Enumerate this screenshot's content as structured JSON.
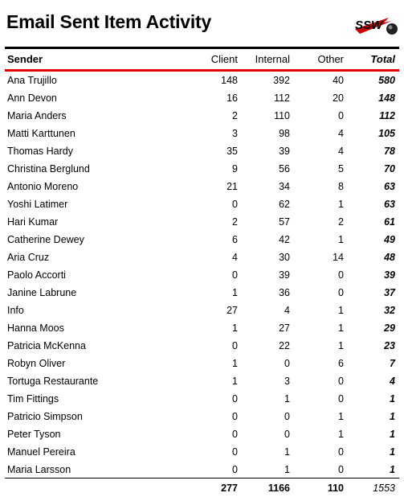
{
  "report": {
    "title": "Email Sent Item Activity",
    "logo_text": "SSW"
  },
  "columns": {
    "sender": "Sender",
    "client": "Client",
    "internal": "Internal",
    "other": "Other",
    "total": "Total"
  },
  "rows": [
    {
      "sender": "Ana Trujillo",
      "client": "148",
      "internal": "392",
      "other": "40",
      "total": "580"
    },
    {
      "sender": "Ann Devon",
      "client": "16",
      "internal": "112",
      "other": "20",
      "total": "148"
    },
    {
      "sender": "Maria Anders",
      "client": "2",
      "internal": "110",
      "other": "0",
      "total": "112"
    },
    {
      "sender": "Matti Karttunen",
      "client": "3",
      "internal": "98",
      "other": "4",
      "total": "105"
    },
    {
      "sender": "Thomas Hardy",
      "client": "35",
      "internal": "39",
      "other": "4",
      "total": "78"
    },
    {
      "sender": "Christina Berglund",
      "client": "9",
      "internal": "56",
      "other": "5",
      "total": "70"
    },
    {
      "sender": "Antonio Moreno",
      "client": "21",
      "internal": "34",
      "other": "8",
      "total": "63"
    },
    {
      "sender": "Yoshi Latimer",
      "client": "0",
      "internal": "62",
      "other": "1",
      "total": "63"
    },
    {
      "sender": "Hari Kumar",
      "client": "2",
      "internal": "57",
      "other": "2",
      "total": "61"
    },
    {
      "sender": "Catherine Dewey",
      "client": "6",
      "internal": "42",
      "other": "1",
      "total": "49"
    },
    {
      "sender": "Aria Cruz",
      "client": "4",
      "internal": "30",
      "other": "14",
      "total": "48"
    },
    {
      "sender": "Paolo Accorti",
      "client": "0",
      "internal": "39",
      "other": "0",
      "total": "39"
    },
    {
      "sender": "Janine Labrune",
      "client": "1",
      "internal": "36",
      "other": "0",
      "total": "37"
    },
    {
      "sender": "Info",
      "client": "27",
      "internal": "4",
      "other": "1",
      "total": "32"
    },
    {
      "sender": "Hanna Moos",
      "client": "1",
      "internal": "27",
      "other": "1",
      "total": "29"
    },
    {
      "sender": "Patricia McKenna",
      "client": "0",
      "internal": "22",
      "other": "1",
      "total": "23"
    },
    {
      "sender": "Robyn Oliver",
      "client": "1",
      "internal": "0",
      "other": "6",
      "total": "7"
    },
    {
      "sender": "Tortuga Restaurante",
      "client": "1",
      "internal": "3",
      "other": "0",
      "total": "4"
    },
    {
      "sender": "Tim Fittings",
      "client": "0",
      "internal": "1",
      "other": "0",
      "total": "1"
    },
    {
      "sender": "Patricio Simpson",
      "client": "0",
      "internal": "0",
      "other": "1",
      "total": "1"
    },
    {
      "sender": "Peter Tyson",
      "client": "0",
      "internal": "0",
      "other": "1",
      "total": "1"
    },
    {
      "sender": "Manuel Pereira",
      "client": "0",
      "internal": "1",
      "other": "0",
      "total": "1"
    },
    {
      "sender": "Maria Larsson",
      "client": "0",
      "internal": "1",
      "other": "0",
      "total": "1"
    }
  ],
  "totals": {
    "client": "277",
    "internal": "1166",
    "other": "110",
    "total": "1553"
  },
  "colors": {
    "accent_rule": "#e00000",
    "text": "#000000"
  }
}
